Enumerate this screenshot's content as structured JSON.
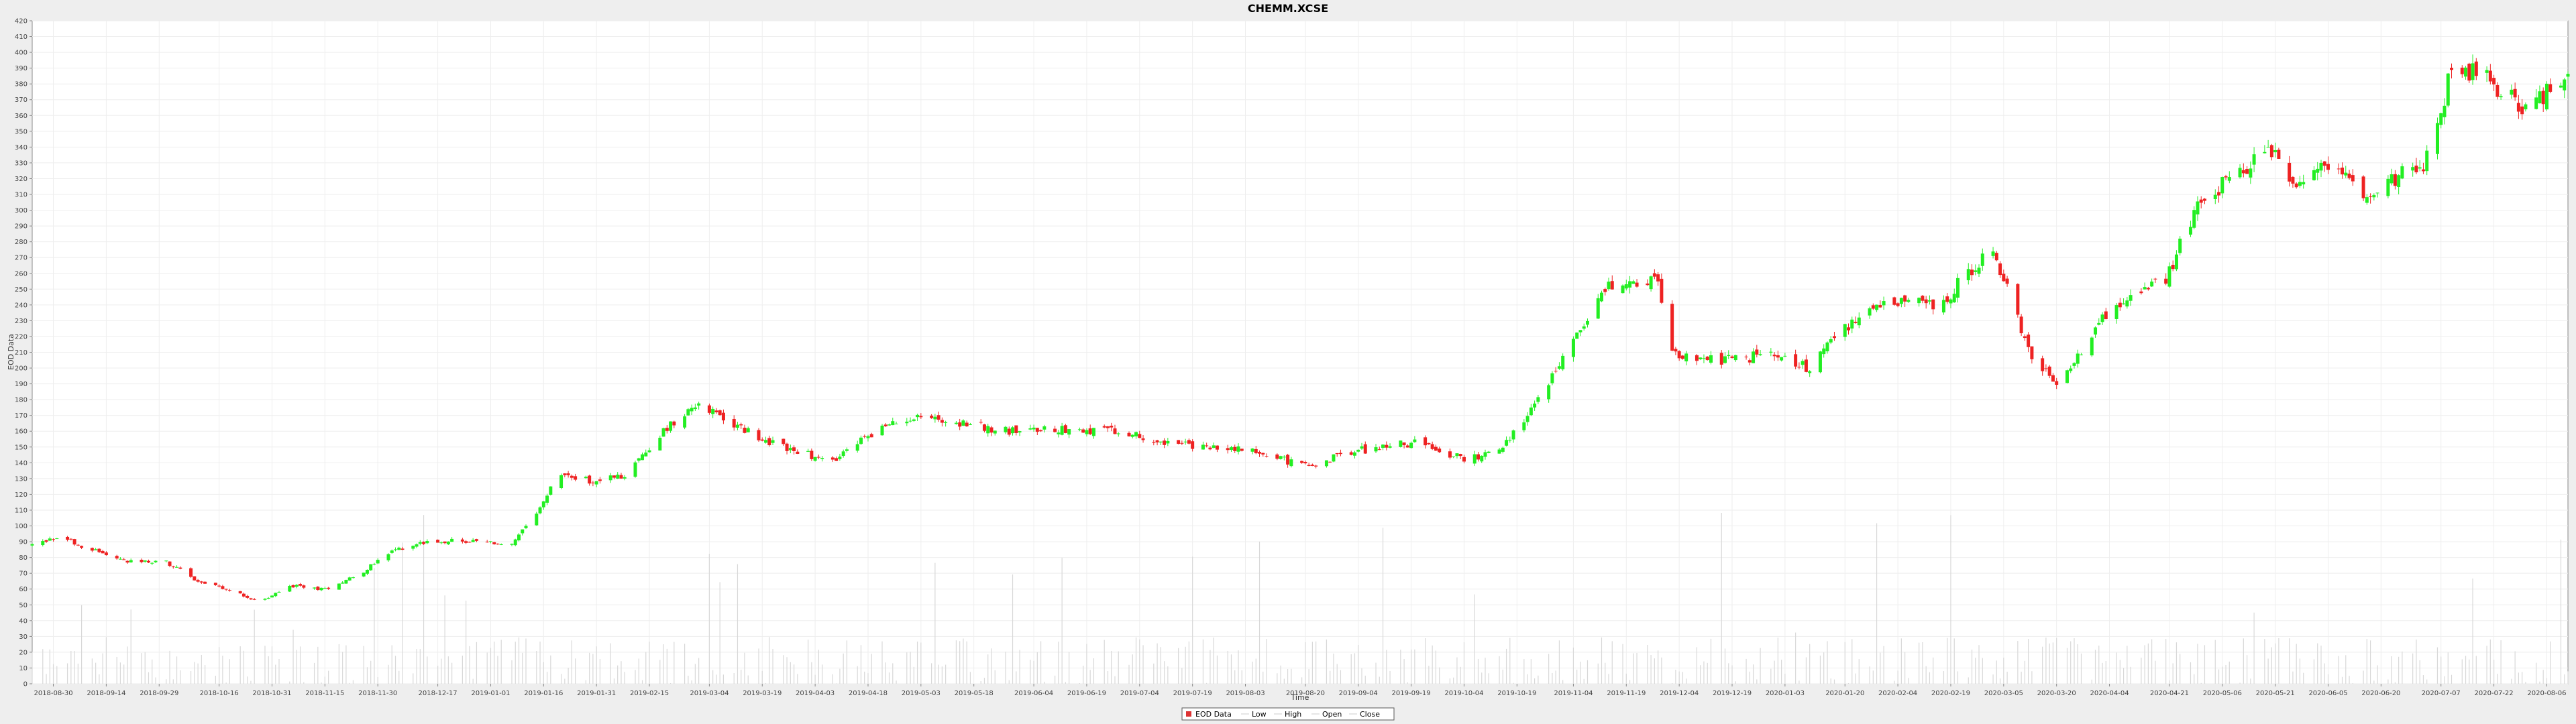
{
  "chart_data": {
    "type": "candlestick",
    "title": "CHEMM.XCSE",
    "xlabel": "Time",
    "ylabel": "EOD Data",
    "ylim": [
      0,
      420
    ],
    "ytick_step": 10,
    "grid": true,
    "legend_placement": "bottom-center",
    "legend": [
      {
        "name": "EOD Data",
        "symbol": "box",
        "color": "#dd3333"
      },
      {
        "name": "Low",
        "symbol": "line",
        "color": "#cccccc"
      },
      {
        "name": "High",
        "symbol": "line",
        "color": "#cccccc"
      },
      {
        "name": "Open",
        "symbol": "line",
        "color": "#cccccc"
      },
      {
        "name": "Close",
        "symbol": "line",
        "color": "#cccccc"
      }
    ],
    "up_color": "#22ee22",
    "down_color": "#ee2222",
    "x_start": "2018-08-24",
    "x_end": "2020-08-12",
    "x_ticks": [
      "2018-08-30",
      "2018-09-14",
      "2018-09-29",
      "2018-10-16",
      "2018-10-31",
      "2018-11-15",
      "2018-11-30",
      "2018-12-17",
      "2019-01-01",
      "2019-01-16",
      "2019-01-31",
      "2019-02-15",
      "2019-03-04",
      "2019-03-19",
      "2019-04-03",
      "2019-04-18",
      "2019-05-03",
      "2019-05-18",
      "2019-06-04",
      "2019-06-19",
      "2019-07-04",
      "2019-07-19",
      "2019-08-03",
      "2019-08-20",
      "2019-09-04",
      "2019-09-19",
      "2019-10-04",
      "2019-10-19",
      "2019-11-04",
      "2019-11-19",
      "2019-12-04",
      "2019-12-19",
      "2020-01-03",
      "2020-01-20",
      "2020-02-04",
      "2020-02-19",
      "2020-03-05",
      "2020-03-20",
      "2020-04-04",
      "2020-04-21",
      "2020-05-06",
      "2020-05-21",
      "2020-06-05",
      "2020-06-20",
      "2020-07-07",
      "2020-07-22",
      "2020-08-06"
    ],
    "price_anchors": [
      [
        "2018-08-24",
        88
      ],
      [
        "2018-09-01",
        93
      ],
      [
        "2018-09-10",
        85
      ],
      [
        "2018-09-20",
        77
      ],
      [
        "2018-10-01",
        77
      ],
      [
        "2018-10-10",
        65
      ],
      [
        "2018-10-20",
        58
      ],
      [
        "2018-10-28",
        52
      ],
      [
        "2018-11-05",
        62
      ],
      [
        "2018-11-15",
        60
      ],
      [
        "2018-11-25",
        70
      ],
      [
        "2018-12-05",
        85
      ],
      [
        "2018-12-15",
        91
      ],
      [
        "2018-12-28",
        90
      ],
      [
        "2019-01-07",
        88
      ],
      [
        "2019-01-15",
        110
      ],
      [
        "2019-01-20",
        133
      ],
      [
        "2019-01-30",
        128
      ],
      [
        "2019-02-08",
        132
      ],
      [
        "2019-02-18",
        158
      ],
      [
        "2019-02-28",
        178
      ],
      [
        "2019-03-08",
        168
      ],
      [
        "2019-03-18",
        156
      ],
      [
        "2019-03-28",
        148
      ],
      [
        "2019-04-08",
        140
      ],
      [
        "2019-04-18",
        158
      ],
      [
        "2019-05-01",
        170
      ],
      [
        "2019-05-15",
        165
      ],
      [
        "2019-05-28",
        160
      ],
      [
        "2019-06-10",
        162
      ],
      [
        "2019-06-25",
        160
      ],
      [
        "2019-07-08",
        155
      ],
      [
        "2019-07-20",
        150
      ],
      [
        "2019-08-05",
        148
      ],
      [
        "2019-08-20",
        138
      ],
      [
        "2019-09-05",
        148
      ],
      [
        "2019-09-20",
        153
      ],
      [
        "2019-10-05",
        142
      ],
      [
        "2019-10-15",
        150
      ],
      [
        "2019-10-25",
        180
      ],
      [
        "2019-11-05",
        220
      ],
      [
        "2019-11-12",
        250
      ],
      [
        "2019-11-22",
        252
      ],
      [
        "2019-11-28",
        255
      ],
      [
        "2019-12-02",
        210
      ],
      [
        "2019-12-15",
        205
      ],
      [
        "2019-12-28",
        208
      ],
      [
        "2020-01-10",
        200
      ],
      [
        "2020-01-20",
        225
      ],
      [
        "2020-02-01",
        245
      ],
      [
        "2020-02-15",
        238
      ],
      [
        "2020-02-24",
        260
      ],
      [
        "2020-03-01",
        275
      ],
      [
        "2020-03-06",
        250
      ],
      [
        "2020-03-12",
        210
      ],
      [
        "2020-03-20",
        190
      ],
      [
        "2020-03-28",
        215
      ],
      [
        "2020-04-05",
        240
      ],
      [
        "2020-04-20",
        255
      ],
      [
        "2020-04-28",
        300
      ],
      [
        "2020-05-08",
        320
      ],
      [
        "2020-05-20",
        338
      ],
      [
        "2020-05-28",
        315
      ],
      [
        "2020-06-05",
        330
      ],
      [
        "2020-06-15",
        312
      ],
      [
        "2020-06-25",
        322
      ],
      [
        "2020-07-02",
        325
      ],
      [
        "2020-07-07",
        360
      ],
      [
        "2020-07-10",
        395
      ],
      [
        "2020-07-22",
        380
      ],
      [
        "2020-08-01",
        362
      ],
      [
        "2020-08-12",
        390
      ]
    ]
  }
}
